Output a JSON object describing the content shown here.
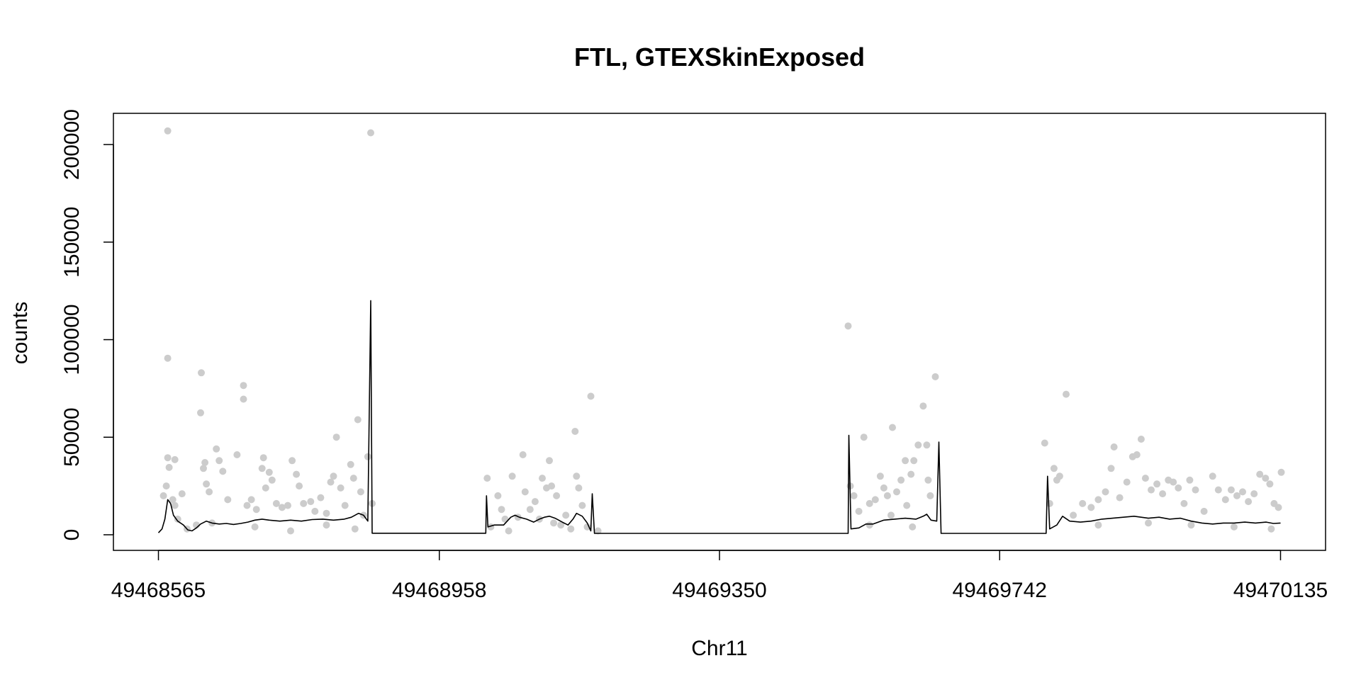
{
  "chart_data": {
    "type": "scatter",
    "title": "FTL, GTEXSkinExposed",
    "xlabel": "Chr11",
    "ylabel": "counts",
    "xlim": [
      49468502,
      49470198
    ],
    "ylim": [
      -8000,
      216000
    ],
    "x_ticks": [
      {
        "value": 49468565,
        "label": "49468565"
      },
      {
        "value": 49468958,
        "label": "49468958"
      },
      {
        "value": 49469350,
        "label": "49469350"
      },
      {
        "value": 49469742,
        "label": "49469742"
      },
      {
        "value": 49470135,
        "label": "49470135"
      }
    ],
    "y_ticks": [
      {
        "value": 0,
        "label": "0"
      },
      {
        "value": 50000,
        "label": "50000"
      },
      {
        "value": 100000,
        "label": "100000"
      },
      {
        "value": 150000,
        "label": "150000"
      },
      {
        "value": 200000,
        "label": "200000"
      }
    ],
    "colors": {
      "points": "#cccccc",
      "line": "#000000",
      "frame": "#000000"
    },
    "series": [
      {
        "type": "scatter",
        "points": [
          [
            49468578,
            207000
          ],
          [
            49468578,
            90500
          ],
          [
            49468578,
            39500
          ],
          [
            49468580,
            34500
          ],
          [
            49468576,
            25000
          ],
          [
            49468572,
            20000
          ],
          [
            49468585,
            18000
          ],
          [
            49468588,
            15000
          ],
          [
            49468592,
            8000
          ],
          [
            49468588,
            38500
          ],
          [
            49468598,
            21000
          ],
          [
            49468618,
            5000
          ],
          [
            49468625,
            83000
          ],
          [
            49468624,
            62500
          ],
          [
            49468630,
            37000
          ],
          [
            49468628,
            34000
          ],
          [
            49468632,
            26000
          ],
          [
            49468636,
            22000
          ],
          [
            49468646,
            44000
          ],
          [
            49468650,
            38000
          ],
          [
            49468655,
            32500
          ],
          [
            49468662,
            18000
          ],
          [
            49468675,
            41000
          ],
          [
            49468684,
            76500
          ],
          [
            49468684,
            69500
          ],
          [
            49468689,
            15000
          ],
          [
            49468695,
            18000
          ],
          [
            49468702,
            13000
          ],
          [
            49468712,
            39500
          ],
          [
            49468710,
            34000
          ],
          [
            49468715,
            24000
          ],
          [
            49468720,
            32000
          ],
          [
            49468724,
            28000
          ],
          [
            49468730,
            16000
          ],
          [
            49468738,
            14000
          ],
          [
            49468746,
            15000
          ],
          [
            49468752,
            38000
          ],
          [
            49468758,
            31000
          ],
          [
            49468762,
            25000
          ],
          [
            49468768,
            16000
          ],
          [
            49468778,
            17000
          ],
          [
            49468784,
            12000
          ],
          [
            49468792,
            19000
          ],
          [
            49468800,
            11000
          ],
          [
            49468806,
            27000
          ],
          [
            49468810,
            30000
          ],
          [
            49468814,
            50000
          ],
          [
            49468820,
            24000
          ],
          [
            49468826,
            15000
          ],
          [
            49468834,
            36000
          ],
          [
            49468838,
            29000
          ],
          [
            49468844,
            59000
          ],
          [
            49468848,
            22000
          ],
          [
            49468852,
            10000
          ],
          [
            49468858,
            40000
          ],
          [
            49468862,
            206000
          ],
          [
            49468864,
            16000
          ],
          [
            49468605,
            3000
          ],
          [
            49468640,
            6000
          ],
          [
            49468700,
            4000
          ],
          [
            49468750,
            2000
          ],
          [
            49468800,
            5000
          ],
          [
            49468840,
            3000
          ],
          [
            49469025,
            29000
          ],
          [
            49469030,
            4000
          ],
          [
            49469045,
            13000
          ],
          [
            49469050,
            8000
          ],
          [
            49469055,
            2000
          ],
          [
            49469060,
            30000
          ],
          [
            49469068,
            9000
          ],
          [
            49469075,
            41000
          ],
          [
            49469078,
            22000
          ],
          [
            49469085,
            13000
          ],
          [
            49469092,
            17000
          ],
          [
            49469098,
            8000
          ],
          [
            49469102,
            29000
          ],
          [
            49469108,
            24000
          ],
          [
            49469112,
            38000
          ],
          [
            49469115,
            25000
          ],
          [
            49469122,
            20000
          ],
          [
            49469128,
            5000
          ],
          [
            49469135,
            10000
          ],
          [
            49469142,
            3000
          ],
          [
            49469148,
            53000
          ],
          [
            49469150,
            30000
          ],
          [
            49469153,
            24000
          ],
          [
            49469158,
            15000
          ],
          [
            49469165,
            4000
          ],
          [
            49469170,
            71000
          ],
          [
            49469180,
            2000
          ],
          [
            49469040,
            20000
          ],
          [
            49469118,
            6000
          ],
          [
            49469530,
            107000
          ],
          [
            49469533,
            25000
          ],
          [
            49469538,
            20000
          ],
          [
            49469545,
            12000
          ],
          [
            49469552,
            50000
          ],
          [
            49469560,
            16000
          ],
          [
            49469568,
            18000
          ],
          [
            49469575,
            30000
          ],
          [
            49469580,
            24000
          ],
          [
            49469585,
            20000
          ],
          [
            49469592,
            55000
          ],
          [
            49469598,
            22000
          ],
          [
            49469604,
            28000
          ],
          [
            49469610,
            38000
          ],
          [
            49469618,
            31000
          ],
          [
            49469622,
            38000
          ],
          [
            49469628,
            46000
          ],
          [
            49469635,
            66000
          ],
          [
            49469640,
            46000
          ],
          [
            49469645,
            20000
          ],
          [
            49469652,
            81000
          ],
          [
            49469642,
            28000
          ],
          [
            49469612,
            15000
          ],
          [
            49469590,
            10000
          ],
          [
            49469560,
            5000
          ],
          [
            49469620,
            4000
          ],
          [
            49469805,
            47000
          ],
          [
            49469812,
            16000
          ],
          [
            49469818,
            34000
          ],
          [
            49469822,
            28000
          ],
          [
            49469826,
            30000
          ],
          [
            49469835,
            72000
          ],
          [
            49469845,
            10000
          ],
          [
            49469858,
            16000
          ],
          [
            49469870,
            14000
          ],
          [
            49469880,
            18000
          ],
          [
            49469890,
            22000
          ],
          [
            49469898,
            34000
          ],
          [
            49469902,
            45000
          ],
          [
            49469910,
            19000
          ],
          [
            49469920,
            27000
          ],
          [
            49469928,
            40000
          ],
          [
            49469934,
            41000
          ],
          [
            49469940,
            49000
          ],
          [
            49469946,
            29000
          ],
          [
            49469954,
            23000
          ],
          [
            49469962,
            26000
          ],
          [
            49469970,
            21000
          ],
          [
            49469978,
            28000
          ],
          [
            49469985,
            27000
          ],
          [
            49469992,
            24000
          ],
          [
            49470000,
            16000
          ],
          [
            49470008,
            28000
          ],
          [
            49470016,
            23000
          ],
          [
            49470028,
            12000
          ],
          [
            49470040,
            30000
          ],
          [
            49470048,
            23000
          ],
          [
            49470058,
            18000
          ],
          [
            49470066,
            23000
          ],
          [
            49470074,
            20000
          ],
          [
            49470082,
            22000
          ],
          [
            49470090,
            17000
          ],
          [
            49470098,
            21000
          ],
          [
            49470106,
            31000
          ],
          [
            49470114,
            29000
          ],
          [
            49470120,
            26000
          ],
          [
            49470126,
            16000
          ],
          [
            49470132,
            14000
          ],
          [
            49470136,
            32000
          ],
          [
            49470010,
            5000
          ],
          [
            49470070,
            4000
          ],
          [
            49470122,
            3000
          ],
          [
            49469880,
            5000
          ],
          [
            49469950,
            6000
          ]
        ]
      },
      {
        "type": "line",
        "points": [
          [
            49468565,
            1000
          ],
          [
            49468570,
            3000
          ],
          [
            49468574,
            8000
          ],
          [
            49468578,
            18000
          ],
          [
            49468582,
            16000
          ],
          [
            49468586,
            10000
          ],
          [
            49468592,
            7000
          ],
          [
            49468600,
            5000
          ],
          [
            49468606,
            2500
          ],
          [
            49468612,
            2000
          ],
          [
            49468618,
            3500
          ],
          [
            49468624,
            5500
          ],
          [
            49468632,
            7000
          ],
          [
            49468640,
            6000
          ],
          [
            49468650,
            5500
          ],
          [
            49468660,
            5800
          ],
          [
            49468670,
            5300
          ],
          [
            49468680,
            5800
          ],
          [
            49468690,
            6500
          ],
          [
            49468700,
            7500
          ],
          [
            49468710,
            8000
          ],
          [
            49468720,
            7500
          ],
          [
            49468735,
            7000
          ],
          [
            49468750,
            7500
          ],
          [
            49468765,
            7000
          ],
          [
            49468780,
            7800
          ],
          [
            49468795,
            8000
          ],
          [
            49468810,
            7500
          ],
          [
            49468825,
            8000
          ],
          [
            49468835,
            9000
          ],
          [
            49468845,
            11000
          ],
          [
            49468852,
            10000
          ],
          [
            49468858,
            7000
          ],
          [
            49468862,
            120000
          ],
          [
            49468864,
            800
          ],
          [
            49469023,
            800
          ],
          [
            49469024,
            20000
          ],
          [
            49469026,
            4000
          ],
          [
            49469035,
            5000
          ],
          [
            49469048,
            5000
          ],
          [
            49469058,
            9000
          ],
          [
            49469064,
            10000
          ],
          [
            49469070,
            9000
          ],
          [
            49469080,
            8000
          ],
          [
            49469090,
            6500
          ],
          [
            49469098,
            8000
          ],
          [
            49469105,
            9000
          ],
          [
            49469112,
            9500
          ],
          [
            49469120,
            8500
          ],
          [
            49469130,
            6500
          ],
          [
            49469138,
            5000
          ],
          [
            49469145,
            8000
          ],
          [
            49469150,
            11000
          ],
          [
            49469158,
            9500
          ],
          [
            49469165,
            6000
          ],
          [
            49469170,
            2000
          ],
          [
            49469172,
            21000
          ],
          [
            49469175,
            700
          ],
          [
            49469530,
            700
          ],
          [
            49469531,
            51000
          ],
          [
            49469534,
            3000
          ],
          [
            49469545,
            3500
          ],
          [
            49469555,
            5500
          ],
          [
            49469565,
            5500
          ],
          [
            49469580,
            7500
          ],
          [
            49469595,
            8000
          ],
          [
            49469610,
            8500
          ],
          [
            49469625,
            8000
          ],
          [
            49469635,
            9500
          ],
          [
            49469640,
            10500
          ],
          [
            49469646,
            7500
          ],
          [
            49469654,
            7000
          ],
          [
            49469657,
            47500
          ],
          [
            49469660,
            700
          ],
          [
            49469807,
            700
          ],
          [
            49469809,
            30000
          ],
          [
            49469812,
            3000
          ],
          [
            49469822,
            5000
          ],
          [
            49469830,
            9500
          ],
          [
            49469840,
            7000
          ],
          [
            49469855,
            6500
          ],
          [
            49469870,
            7000
          ],
          [
            49469885,
            8000
          ],
          [
            49469900,
            8500
          ],
          [
            49469915,
            9000
          ],
          [
            49469930,
            9500
          ],
          [
            49469950,
            8500
          ],
          [
            49469965,
            9000
          ],
          [
            49469980,
            8000
          ],
          [
            49469995,
            8500
          ],
          [
            49470010,
            7000
          ],
          [
            49470025,
            6000
          ],
          [
            49470040,
            5500
          ],
          [
            49470055,
            6000
          ],
          [
            49470070,
            6000
          ],
          [
            49470085,
            6500
          ],
          [
            49470100,
            6000
          ],
          [
            49470115,
            6500
          ],
          [
            49470125,
            5800
          ],
          [
            49470135,
            6000
          ]
        ]
      }
    ]
  }
}
